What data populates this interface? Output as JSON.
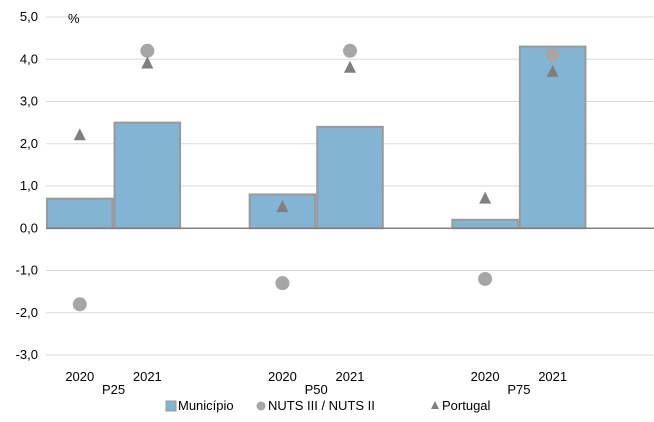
{
  "chart_data": {
    "type": "bar",
    "ylim": [
      -3.0,
      5.0
    ],
    "y_ticks": [
      5.0,
      4.0,
      3.0,
      2.0,
      1.0,
      0.0,
      -1.0,
      -2.0,
      -3.0
    ],
    "y_tick_labels": [
      "5,0",
      "4,0",
      "3,0",
      "2,0",
      "1,0",
      "0,0",
      "-1,0",
      "-2,0",
      "-3,0"
    ],
    "y_unit": "%",
    "grid": true,
    "legend_position": "bottom",
    "groups": [
      {
        "label": "P25",
        "years": [
          {
            "year": "2020",
            "municipio": 0.7,
            "nuts": -1.8,
            "portugal": 2.2
          },
          {
            "year": "2021",
            "municipio": 2.5,
            "nuts": 4.2,
            "portugal": 3.9
          }
        ]
      },
      {
        "label": "P50",
        "years": [
          {
            "year": "2020",
            "municipio": 0.8,
            "nuts": -1.3,
            "portugal": 0.5
          },
          {
            "year": "2021",
            "municipio": 2.4,
            "nuts": 4.2,
            "portugal": 3.8
          }
        ]
      },
      {
        "label": "P75",
        "years": [
          {
            "year": "2020",
            "municipio": 0.2,
            "nuts": -1.2,
            "portugal": 0.7
          },
          {
            "year": "2021",
            "municipio": 4.3,
            "nuts": 4.1,
            "portugal": 3.7
          }
        ]
      }
    ],
    "series": [
      {
        "key": "municipio",
        "name": "Município",
        "type": "bar",
        "color": "#84b4d4",
        "stroke": "#999999"
      },
      {
        "key": "nuts",
        "name": "NUTS III / NUTS II",
        "type": "marker-circle",
        "color": "#a6a6a6"
      },
      {
        "key": "portugal",
        "name": "Portugal",
        "type": "marker-triangle",
        "color": "#7f7f7f"
      }
    ],
    "colors": {
      "grid": "#d9d9d9",
      "zero_line": "#808080"
    }
  }
}
